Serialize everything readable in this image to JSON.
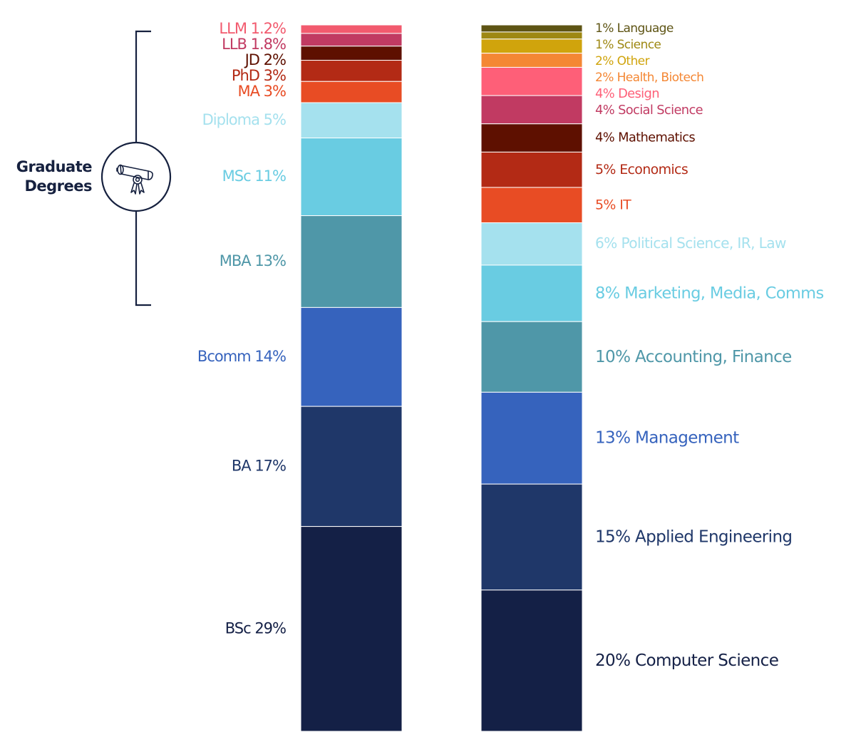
{
  "chart_data": {
    "type": "bar",
    "stacked": true,
    "bracket": {
      "label_line1": "Graduate",
      "label_line2": "Degrees",
      "icon": "diploma-scroll-icon"
    },
    "bars": [
      {
        "segments": [
          {
            "label": "LLM",
            "pct_text": "1.2%",
            "value": 1.2,
            "color": "#f25a6e"
          },
          {
            "label": "LLB",
            "pct_text": "1.8%",
            "value": 1.8,
            "color": "#c13a62"
          },
          {
            "label": "JD",
            "pct_text": "2%",
            "value": 2,
            "color": "#5e1000"
          },
          {
            "label": "PhD",
            "pct_text": "3%",
            "value": 3,
            "color": "#b32a15"
          },
          {
            "label": "MA",
            "pct_text": "3%",
            "value": 3,
            "color": "#e84c24"
          },
          {
            "label": "Diploma",
            "pct_text": "5%",
            "value": 5,
            "color": "#a5e1ee"
          },
          {
            "label": "MSc",
            "pct_text": "11%",
            "value": 11,
            "color": "#69cce2"
          },
          {
            "label": "MBA",
            "pct_text": "13%",
            "value": 13,
            "color": "#4f97a8"
          },
          {
            "label": "Bcomm",
            "pct_text": "14%",
            "value": 14,
            "color": "#3663bd"
          },
          {
            "label": "BA",
            "pct_text": "17%",
            "value": 17,
            "color": "#1f3769"
          },
          {
            "label": "BSc",
            "pct_text": "29%",
            "value": 29,
            "color": "#142046"
          }
        ]
      },
      {
        "segments": [
          {
            "label": "Language",
            "pct_text": "1%",
            "value": 1,
            "color": "#5e5414"
          },
          {
            "label": "Science",
            "pct_text": "1%",
            "value": 1,
            "color": "#9e8813"
          },
          {
            "label": "Other",
            "pct_text": "2%",
            "value": 2,
            "color": "#d0a40c"
          },
          {
            "label": "Health, Biotech",
            "pct_text": "2%",
            "value": 2,
            "color": "#f48734"
          },
          {
            "label": "Design",
            "pct_text": "4%",
            "value": 4,
            "color": "#fe5f78"
          },
          {
            "label": "Social Science",
            "pct_text": "4%",
            "value": 4,
            "color": "#c13a62"
          },
          {
            "label": "Mathematics",
            "pct_text": "4%",
            "value": 4,
            "color": "#5e1000"
          },
          {
            "label": "Economics",
            "pct_text": "5%",
            "value": 5,
            "color": "#b32a15"
          },
          {
            "label": "IT",
            "pct_text": "5%",
            "value": 5,
            "color": "#e84c24"
          },
          {
            "label": "Political Science, IR, Law",
            "pct_text": "6%",
            "value": 6,
            "color": "#a5e1ee"
          },
          {
            "label": "Marketing, Media, Comms",
            "pct_text": "8%",
            "value": 8,
            "color": "#69cce2"
          },
          {
            "label": "Accounting, Finance",
            "pct_text": "10%",
            "value": 10,
            "color": "#4f97a8"
          },
          {
            "label": "Management",
            "pct_text": "13%",
            "value": 13,
            "color": "#3663bd"
          },
          {
            "label": "Applied Engineering",
            "pct_text": "15%",
            "value": 15,
            "color": "#1f3769"
          },
          {
            "label": "Computer Science",
            "pct_text": "20%",
            "value": 20,
            "color": "#142046"
          }
        ]
      }
    ]
  }
}
